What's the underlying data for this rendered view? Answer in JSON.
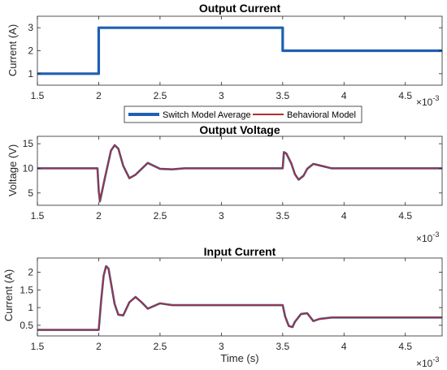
{
  "chart_data": [
    {
      "type": "line",
      "title": "Output Current",
      "xlabel": "",
      "ylabel": "Current (A)",
      "xlim": [
        0.0015,
        0.0048
      ],
      "ylim": [
        0.5,
        3.5
      ],
      "xticks": [
        0.0015,
        0.002,
        0.0025,
        0.003,
        0.0035,
        0.004,
        0.0045
      ],
      "xtick_labels": [
        "1.5",
        "2",
        "2.5",
        "3",
        "3.5",
        "4",
        "4.5"
      ],
      "yticks": [
        1,
        2,
        3
      ],
      "ytick_labels": [
        "1",
        "2",
        "3"
      ],
      "x_exponent_base": "×10",
      "x_exponent_power": "-3",
      "series": [
        {
          "name": "Switch Model Average",
          "color": "#1f5fb4",
          "x": [
            0.0015,
            0.002,
            0.002,
            0.0035,
            0.0035,
            0.0048
          ],
          "y": [
            1,
            1,
            3,
            3,
            2,
            2
          ]
        }
      ],
      "legend": {
        "placement": "bottom-center",
        "entries": [
          {
            "label": "Switch Model Average",
            "color": "#1f5fb4"
          },
          {
            "label": "Behavioral Model",
            "color": "#b0302e"
          }
        ]
      }
    },
    {
      "type": "line",
      "title": "Output Voltage",
      "xlabel": "",
      "ylabel": "Voltage (V)",
      "xlim": [
        0.0015,
        0.0048
      ],
      "ylim": [
        2.5,
        16.5
      ],
      "xticks": [
        0.0015,
        0.002,
        0.0025,
        0.003,
        0.0035,
        0.004,
        0.0045
      ],
      "xtick_labels": [
        "1.5",
        "2",
        "2.5",
        "3",
        "3.5",
        "4",
        "4.5"
      ],
      "yticks": [
        5,
        10,
        15
      ],
      "ytick_labels": [
        "5",
        "10",
        "15"
      ],
      "x_exponent_base": "×10",
      "x_exponent_power": "-3",
      "series": [
        {
          "name": "Switch Model Average",
          "color": "#1f5fb4",
          "x": [
            0.0015,
            0.00199,
            0.002,
            0.00201,
            0.00205,
            0.0021,
            0.00213,
            0.00216,
            0.0022,
            0.00225,
            0.0023,
            0.0024,
            0.0025,
            0.0026,
            0.0027,
            0.0035,
            0.00351,
            0.00353,
            0.00357,
            0.0036,
            0.00363,
            0.00367,
            0.0037,
            0.00375,
            0.0038,
            0.0039,
            0.004,
            0.0048
          ],
          "y": [
            10,
            10,
            5.5,
            3.3,
            8,
            13.6,
            14.7,
            14,
            10.5,
            8,
            8.7,
            11.1,
            9.9,
            9.8,
            10,
            10,
            13.3,
            13.0,
            11,
            8.8,
            7.7,
            8.5,
            9.9,
            10.9,
            10.6,
            10,
            10,
            10
          ]
        },
        {
          "name": "Behavioral Model",
          "color": "#b0302e",
          "x": [
            0.0015,
            0.00199,
            0.002,
            0.00201,
            0.00205,
            0.0021,
            0.00213,
            0.00216,
            0.0022,
            0.00225,
            0.0023,
            0.0024,
            0.0025,
            0.0026,
            0.0027,
            0.0035,
            0.00351,
            0.00353,
            0.00357,
            0.0036,
            0.00363,
            0.00367,
            0.0037,
            0.00375,
            0.0038,
            0.0039,
            0.004,
            0.0048
          ],
          "y": [
            10,
            10,
            5.5,
            3.3,
            8,
            13.6,
            14.7,
            14,
            10.5,
            8,
            8.7,
            11.1,
            9.9,
            9.8,
            10,
            10,
            13.3,
            13.0,
            11,
            8.8,
            7.7,
            8.5,
            9.9,
            10.9,
            10.6,
            10,
            10,
            10
          ]
        }
      ]
    },
    {
      "type": "line",
      "title": "Input Current",
      "xlabel": "Time (s)",
      "ylabel": "Current (A)",
      "xlim": [
        0.0015,
        0.0048
      ],
      "ylim": [
        0.2,
        2.4
      ],
      "xticks": [
        0.0015,
        0.002,
        0.0025,
        0.003,
        0.0035,
        0.004,
        0.0045
      ],
      "xtick_labels": [
        "1.5",
        "2",
        "2.5",
        "3",
        "3.5",
        "4",
        "4.5"
      ],
      "yticks": [
        0.5,
        1,
        1.5,
        2
      ],
      "ytick_labels": [
        "0.5",
        "1",
        "1.5",
        "2"
      ],
      "x_exponent_base": "×10",
      "x_exponent_power": "-3",
      "series": [
        {
          "name": "Switch Model Average",
          "color": "#1f5fb4",
          "x": [
            0.0015,
            0.002,
            0.00202,
            0.00204,
            0.00206,
            0.00208,
            0.0021,
            0.00213,
            0.00216,
            0.0022,
            0.00225,
            0.0023,
            0.00235,
            0.0024,
            0.0025,
            0.0026,
            0.0027,
            0.0028,
            0.0035,
            0.00352,
            0.00355,
            0.00358,
            0.0036,
            0.00365,
            0.0037,
            0.00375,
            0.0038,
            0.0039,
            0.004,
            0.0048
          ],
          "y": [
            0.37,
            0.37,
            1.2,
            1.9,
            2.17,
            2.1,
            1.7,
            1.1,
            0.8,
            0.78,
            1.15,
            1.3,
            1.15,
            0.97,
            1.12,
            1.07,
            1.07,
            1.07,
            1.07,
            0.75,
            0.48,
            0.45,
            0.6,
            0.82,
            0.84,
            0.62,
            0.68,
            0.72,
            0.72,
            0.72
          ]
        },
        {
          "name": "Behavioral Model",
          "color": "#b0302e",
          "x": [
            0.0015,
            0.002,
            0.00202,
            0.00204,
            0.00206,
            0.00208,
            0.0021,
            0.00213,
            0.00216,
            0.0022,
            0.00225,
            0.0023,
            0.00235,
            0.0024,
            0.0025,
            0.0026,
            0.0027,
            0.0028,
            0.0035,
            0.00352,
            0.00355,
            0.00358,
            0.0036,
            0.00365,
            0.0037,
            0.00375,
            0.0038,
            0.0039,
            0.004,
            0.0048
          ],
          "y": [
            0.37,
            0.37,
            1.2,
            1.9,
            2.17,
            2.1,
            1.7,
            1.1,
            0.8,
            0.78,
            1.15,
            1.3,
            1.15,
            0.97,
            1.12,
            1.07,
            1.07,
            1.07,
            1.07,
            0.75,
            0.48,
            0.45,
            0.6,
            0.82,
            0.84,
            0.62,
            0.68,
            0.72,
            0.72,
            0.72
          ]
        }
      ]
    }
  ]
}
